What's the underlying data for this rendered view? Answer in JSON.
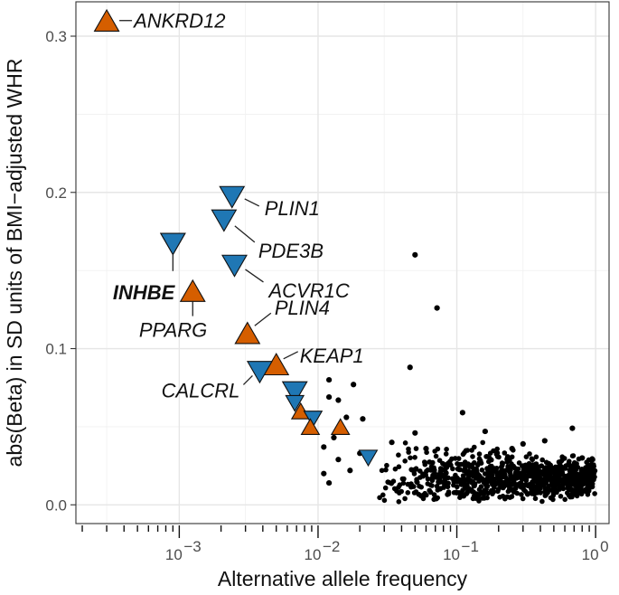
{
  "chart_data": {
    "type": "scatter",
    "xlabel": "Alternative allele frequency",
    "ylabel": "abs(Beta) in SD units of BMI−adjusted WHR",
    "xscale": "log10",
    "xlim": [
      0.00018,
      1.25
    ],
    "ylim": [
      -0.012,
      0.322
    ],
    "y_ticks": [
      0.0,
      0.1,
      0.2,
      0.3
    ],
    "y_tick_labels": [
      "0.0",
      "0.1",
      "0.2",
      "0.3"
    ],
    "x_ticks": [
      0.001,
      0.01,
      0.1,
      1
    ],
    "x_tick_labels": [
      {
        "base": "10",
        "exp": "−3"
      },
      {
        "base": "10",
        "exp": "−2"
      },
      {
        "base": "10",
        "exp": "−1"
      },
      {
        "base": "10",
        "exp": "0"
      }
    ],
    "colors": {
      "up": "#d55e00",
      "down": "#1f77b4",
      "points": "#000000"
    },
    "highlighted": [
      {
        "gene": "ANKRD12",
        "af": 0.0003,
        "beta": 0.31,
        "shape": "triangle-up",
        "bold": false
      },
      {
        "gene": "PLIN1",
        "af": 0.0024,
        "beta": 0.197,
        "shape": "triangle-down",
        "bold": false
      },
      {
        "gene": "PDE3B",
        "af": 0.0021,
        "beta": 0.182,
        "shape": "triangle-down",
        "bold": false
      },
      {
        "gene": "",
        "af": 0.0009,
        "beta": 0.167,
        "shape": "triangle-down",
        "bold": false
      },
      {
        "gene": "ACVR1C",
        "af": 0.0025,
        "beta": 0.153,
        "shape": "triangle-down",
        "bold": false
      },
      {
        "gene": "INHBE",
        "af": 0.0009,
        "beta": 0.167,
        "shape": "triangle-down",
        "bold": true
      },
      {
        "gene": "PPARG",
        "af": 0.00125,
        "beta": 0.137,
        "shape": "triangle-up",
        "bold": false
      },
      {
        "gene": "PLIN4",
        "af": 0.0031,
        "beta": 0.11,
        "shape": "triangle-up",
        "bold": false
      },
      {
        "gene": "KEAP1",
        "af": 0.005,
        "beta": 0.09,
        "shape": "triangle-up",
        "bold": false
      },
      {
        "gene": "CALCRL",
        "af": 0.0038,
        "beta": 0.085,
        "shape": "triangle-down",
        "bold": false
      },
      {
        "gene": "",
        "af": 0.0068,
        "beta": 0.072,
        "shape": "triangle-down",
        "bold": false
      },
      {
        "gene": "",
        "af": 0.0068,
        "beta": 0.065,
        "shape": "triangle-down",
        "bold": false
      },
      {
        "gene": "",
        "af": 0.0075,
        "beta": 0.06,
        "shape": "triangle-up",
        "bold": false
      },
      {
        "gene": "",
        "af": 0.0092,
        "beta": 0.055,
        "shape": "triangle-down",
        "bold": false
      },
      {
        "gene": "",
        "af": 0.0088,
        "beta": 0.05,
        "shape": "triangle-up",
        "bold": false
      },
      {
        "gene": "",
        "af": 0.0145,
        "beta": 0.05,
        "shape": "triangle-up",
        "bold": false
      },
      {
        "gene": "",
        "af": 0.023,
        "beta": 0.03,
        "shape": "triangle-down",
        "bold": false
      }
    ],
    "scatter_points": [
      [
        0.05,
        0.16
      ],
      [
        0.072,
        0.126
      ],
      [
        0.046,
        0.088
      ],
      [
        0.012,
        0.08
      ],
      [
        0.018,
        0.077
      ],
      [
        0.012,
        0.069
      ],
      [
        0.014,
        0.067
      ],
      [
        0.11,
        0.059
      ],
      [
        0.016,
        0.056
      ],
      [
        0.021,
        0.055
      ],
      [
        0.68,
        0.049
      ],
      [
        0.05,
        0.046
      ],
      [
        0.16,
        0.047
      ],
      [
        0.013,
        0.043
      ],
      [
        0.034,
        0.04
      ],
      [
        0.43,
        0.041
      ],
      [
        0.3,
        0.039
      ],
      [
        0.011,
        0.037
      ],
      [
        0.06,
        0.036
      ],
      [
        0.02,
        0.033
      ],
      [
        0.014,
        0.029
      ],
      [
        0.017,
        0.022
      ],
      [
        0.011,
        0.02
      ],
      [
        0.012,
        0.014
      ],
      [
        0.25,
        0.036
      ],
      [
        0.8,
        0.03
      ],
      [
        0.95,
        0.029
      ]
    ],
    "cloud": {
      "af_min": 0.026,
      "af_max": 0.99,
      "beta_center": 0.017,
      "beta_spread": 0.012,
      "count": 900
    }
  }
}
